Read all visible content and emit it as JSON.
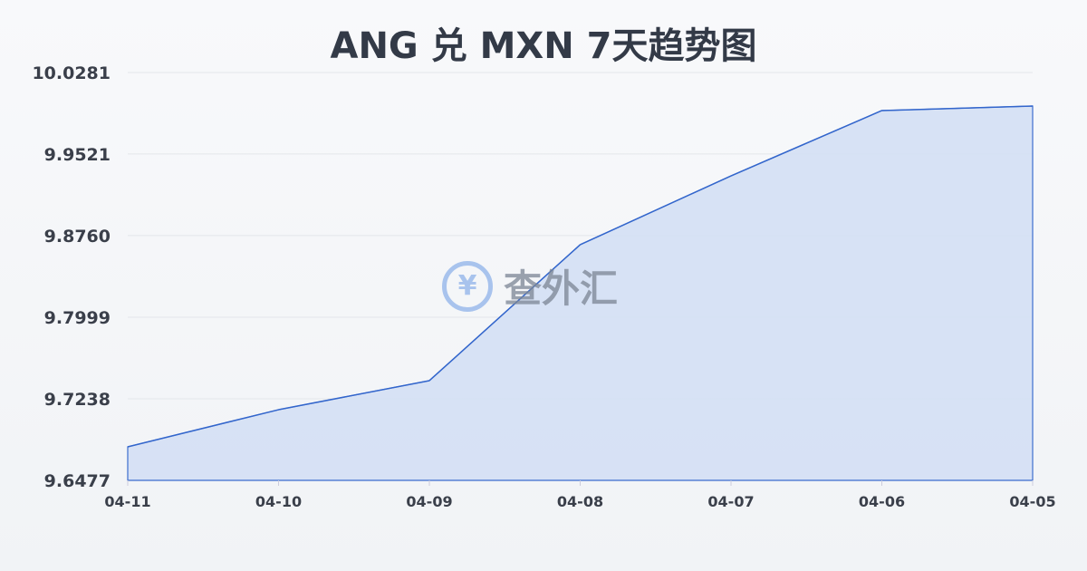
{
  "chart_data": {
    "type": "area",
    "title": "ANG 兑 MXN 7天趋势图",
    "categories": [
      "04-11",
      "04-10",
      "04-09",
      "04-08",
      "04-07",
      "04-06",
      "04-05"
    ],
    "values": [
      9.679,
      9.7136,
      9.7407,
      9.8675,
      9.9317,
      9.9926,
      9.9968
    ],
    "yticks": [
      "9.6477",
      "9.7238",
      "9.7999",
      "9.8760",
      "9.9521",
      "10.0281"
    ],
    "ylim": [
      9.6477,
      10.0281
    ],
    "grid": true,
    "colors": {
      "line": "#3366cc",
      "fill": "#d6e1f5",
      "grid": "#e3e6ea"
    }
  },
  "watermark": {
    "symbol": "¥",
    "text": "查外汇"
  }
}
